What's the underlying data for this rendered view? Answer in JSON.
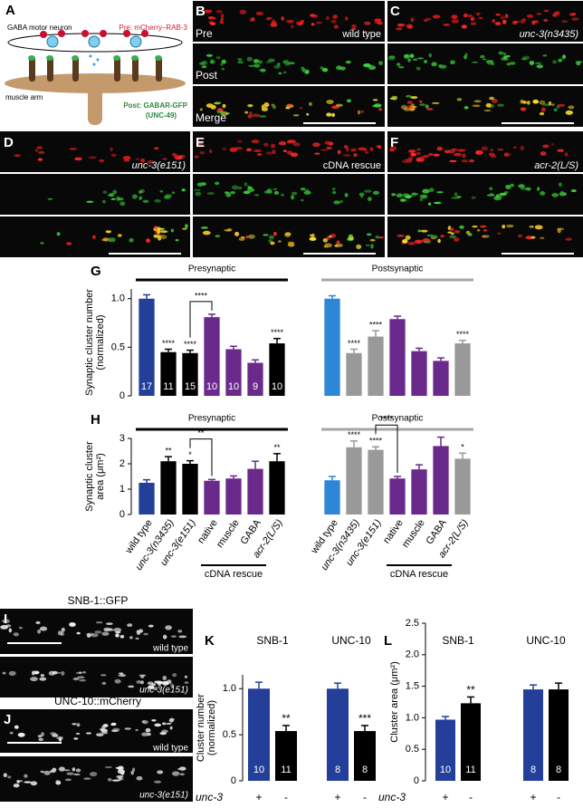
{
  "panels": {
    "A": {
      "letter": "A",
      "neuron": "GABA motor neuron",
      "pre": "Pre: mCherry–RAB-3",
      "muscle": "muscle arm",
      "post": [
        "Post: GABAR-GFP",
        "(UNC-49)"
      ]
    },
    "B": {
      "letter": "B",
      "genotype": "wild type",
      "rows": [
        "Pre",
        "Post",
        "Merge"
      ]
    },
    "C": {
      "letter": "C",
      "genotype": "unc-3(n3435)"
    },
    "D": {
      "letter": "D",
      "genotype": "unc-3(e151)"
    },
    "E": {
      "letter": "E",
      "genotype": "cDNA rescue"
    },
    "F": {
      "letter": "F",
      "genotype": "acr-2(L/S)"
    },
    "I": {
      "letter": "I",
      "marker": "SNB-1::GFP",
      "genotypes": [
        "wild type",
        "unc-3(e151)"
      ]
    },
    "J": {
      "letter": "J",
      "marker": "UNC-10::mCherry",
      "genotypes": [
        "wild type",
        "unc-3(e151)"
      ]
    }
  },
  "chart_data": [
    {
      "type": "bar",
      "letter": "G",
      "ylabel": [
        "Synaptic cluster number",
        "(normalized)"
      ],
      "ylim": [
        0,
        1.1
      ],
      "yticks": [
        0,
        0.5,
        {
          "value": 1,
          "label": "1.0"
        }
      ],
      "series": [
        {
          "name": "Presynaptic",
          "color": "#000000",
          "colors": [
            "#233f9a",
            "#000000",
            "#000000",
            "#6a2a8c",
            "#6a2a8c",
            "#6a2a8c",
            "#000000"
          ],
          "values": [
            1.0,
            0.45,
            0.44,
            0.81,
            0.48,
            0.34,
            0.54
          ],
          "errors": [
            0.04,
            0.03,
            0.03,
            0.03,
            0.03,
            0.03,
            0.05
          ],
          "n": [
            17,
            11,
            15,
            10,
            10,
            9,
            10
          ],
          "stars": [
            null,
            "****",
            "****",
            null,
            null,
            null,
            "****"
          ],
          "brackets": [
            null,
            null,
            "****",
            null,
            null,
            null,
            null
          ]
        },
        {
          "name": "Postsynaptic",
          "color": "#a6a6a6",
          "colors": [
            "#2e86d6",
            "#999999",
            "#999999",
            "#6a2a8c",
            "#6a2a8c",
            "#6a2a8c",
            "#999999"
          ],
          "values": [
            1.0,
            0.44,
            0.61,
            0.79,
            0.46,
            0.36,
            0.54
          ],
          "errors": [
            0.03,
            0.04,
            0.06,
            0.03,
            0.03,
            0.03,
            0.03
          ],
          "stars": [
            null,
            "****",
            "****",
            null,
            null,
            null,
            "****"
          ]
        }
      ]
    },
    {
      "type": "bar",
      "letter": "H",
      "ylabel": [
        "Synaptic cluster",
        "area (μm²)"
      ],
      "ylim": [
        0,
        3
      ],
      "yticks": [
        0,
        1,
        2,
        3
      ],
      "categories": [
        "wild type",
        "unc-3(n3435)",
        "unc-3(e151)",
        "native",
        "muscle",
        "GABA",
        "acr-2(L/S)"
      ],
      "group_label": "cDNA rescue",
      "series": [
        {
          "name": "Presynaptic",
          "color": "#000000",
          "colors": [
            "#233f9a",
            "#000000",
            "#000000",
            "#6a2a8c",
            "#6a2a8c",
            "#6a2a8c",
            "#000000"
          ],
          "values": [
            1.25,
            2.1,
            2.0,
            1.33,
            1.42,
            1.8,
            2.1
          ],
          "errors": [
            0.12,
            0.18,
            0.12,
            0.05,
            0.1,
            0.3,
            0.3
          ],
          "stars": [
            null,
            "**",
            "*",
            null,
            null,
            null,
            "**"
          ],
          "brackets": [
            null,
            null,
            "**",
            null,
            null,
            null,
            null
          ]
        },
        {
          "name": "Postsynaptic",
          "color": "#a6a6a6",
          "colors": [
            "#2e86d6",
            "#999999",
            "#999999",
            "#6a2a8c",
            "#6a2a8c",
            "#6a2a8c",
            "#999999"
          ],
          "values": [
            1.35,
            2.65,
            2.55,
            1.42,
            1.78,
            2.7,
            2.2
          ],
          "errors": [
            0.15,
            0.25,
            0.12,
            0.08,
            0.18,
            0.35,
            0.22
          ],
          "stars": [
            null,
            "****",
            "****",
            null,
            null,
            null,
            "*"
          ],
          "brackets": [
            null,
            null,
            "****",
            null,
            null,
            null,
            null
          ]
        }
      ]
    },
    {
      "type": "grouped_bar",
      "letter": "K",
      "ylabel": [
        "Cluster number",
        "(normalized)"
      ],
      "ylim": [
        0,
        1.15
      ],
      "yticks": [
        0,
        0.5,
        {
          "value": 1,
          "label": "1.0"
        }
      ],
      "categories": [
        "SNB-1",
        "UNC-10"
      ],
      "factor": "unc-3",
      "series": [
        {
          "name": "+",
          "color": "#233f9a",
          "values": [
            1.0,
            1.0
          ],
          "errors": [
            0.07,
            0.06
          ],
          "n": [
            10,
            8
          ],
          "stars": [
            null,
            null
          ]
        },
        {
          "name": "-",
          "color": "#000000",
          "values": [
            0.54,
            0.54
          ],
          "errors": [
            0.06,
            0.06
          ],
          "n": [
            11,
            8
          ],
          "stars": [
            "**",
            "***"
          ]
        }
      ]
    },
    {
      "type": "grouped_bar",
      "letter": "L",
      "ylabel": [
        "Cluster area (μm²)"
      ],
      "ylim": [
        0,
        2.5
      ],
      "yticks": [
        0,
        0.5,
        {
          "value": 1,
          "label": "1.0"
        },
        1.5,
        {
          "value": 2,
          "label": "2.0"
        },
        2.5
      ],
      "categories": [
        "SNB-1",
        "UNC-10"
      ],
      "factor": "unc-3",
      "series": [
        {
          "name": "+",
          "color": "#233f9a",
          "values": [
            0.97,
            1.45
          ],
          "errors": [
            0.05,
            0.07
          ],
          "n": [
            10,
            8
          ],
          "stars": [
            null,
            null
          ]
        },
        {
          "name": "-",
          "color": "#000000",
          "values": [
            1.23,
            1.45
          ],
          "errors": [
            0.1,
            0.1
          ],
          "n": [
            11,
            8
          ],
          "stars": [
            "**",
            null
          ]
        }
      ]
    }
  ]
}
